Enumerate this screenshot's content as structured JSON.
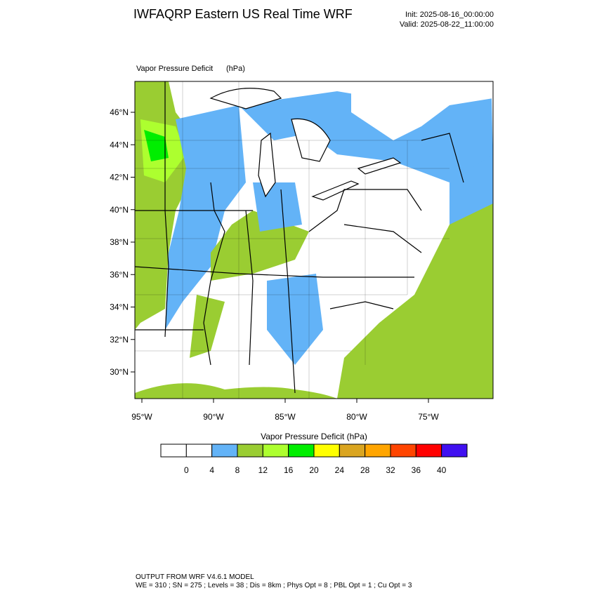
{
  "header": {
    "title": "IWFAQRP Eastern US Real Time WRF",
    "init": "Init: 2025-08-16_00:00:00",
    "valid": "Valid: 2025-08-22_11:00:00"
  },
  "map": {
    "field": "Vapor Pressure Deficit",
    "units": "(hPa)",
    "lat_labels": [
      "46°N",
      "44°N",
      "42°N",
      "40°N",
      "38°N",
      "36°N",
      "34°N",
      "32°N",
      "30°N"
    ],
    "lon_labels": [
      "95°W",
      "90°W",
      "85°W",
      "80°W",
      "75°W"
    ]
  },
  "colorbar": {
    "title": "Vapor Pressure Deficit  (hPa)",
    "labels": [
      "0",
      "4",
      "8",
      "12",
      "16",
      "20",
      "24",
      "28",
      "32",
      "36",
      "40"
    ],
    "colors": [
      "#ffffff",
      "#ffffff",
      "#63b3f7",
      "#9acd32",
      "#adff2f",
      "#00ee00",
      "#ffff00",
      "#daa520",
      "#ffa500",
      "#ff4500",
      "#ff0000",
      "#4010f0"
    ]
  },
  "footer": {
    "line1": "OUTPUT FROM WRF V4.6.1 MODEL",
    "line2": "WE = 310 ; SN = 275 ; Levels = 38 ; Dis = 8km ; Phys Opt = 8 ; PBL Opt = 1 ; Cu Opt = 3"
  }
}
